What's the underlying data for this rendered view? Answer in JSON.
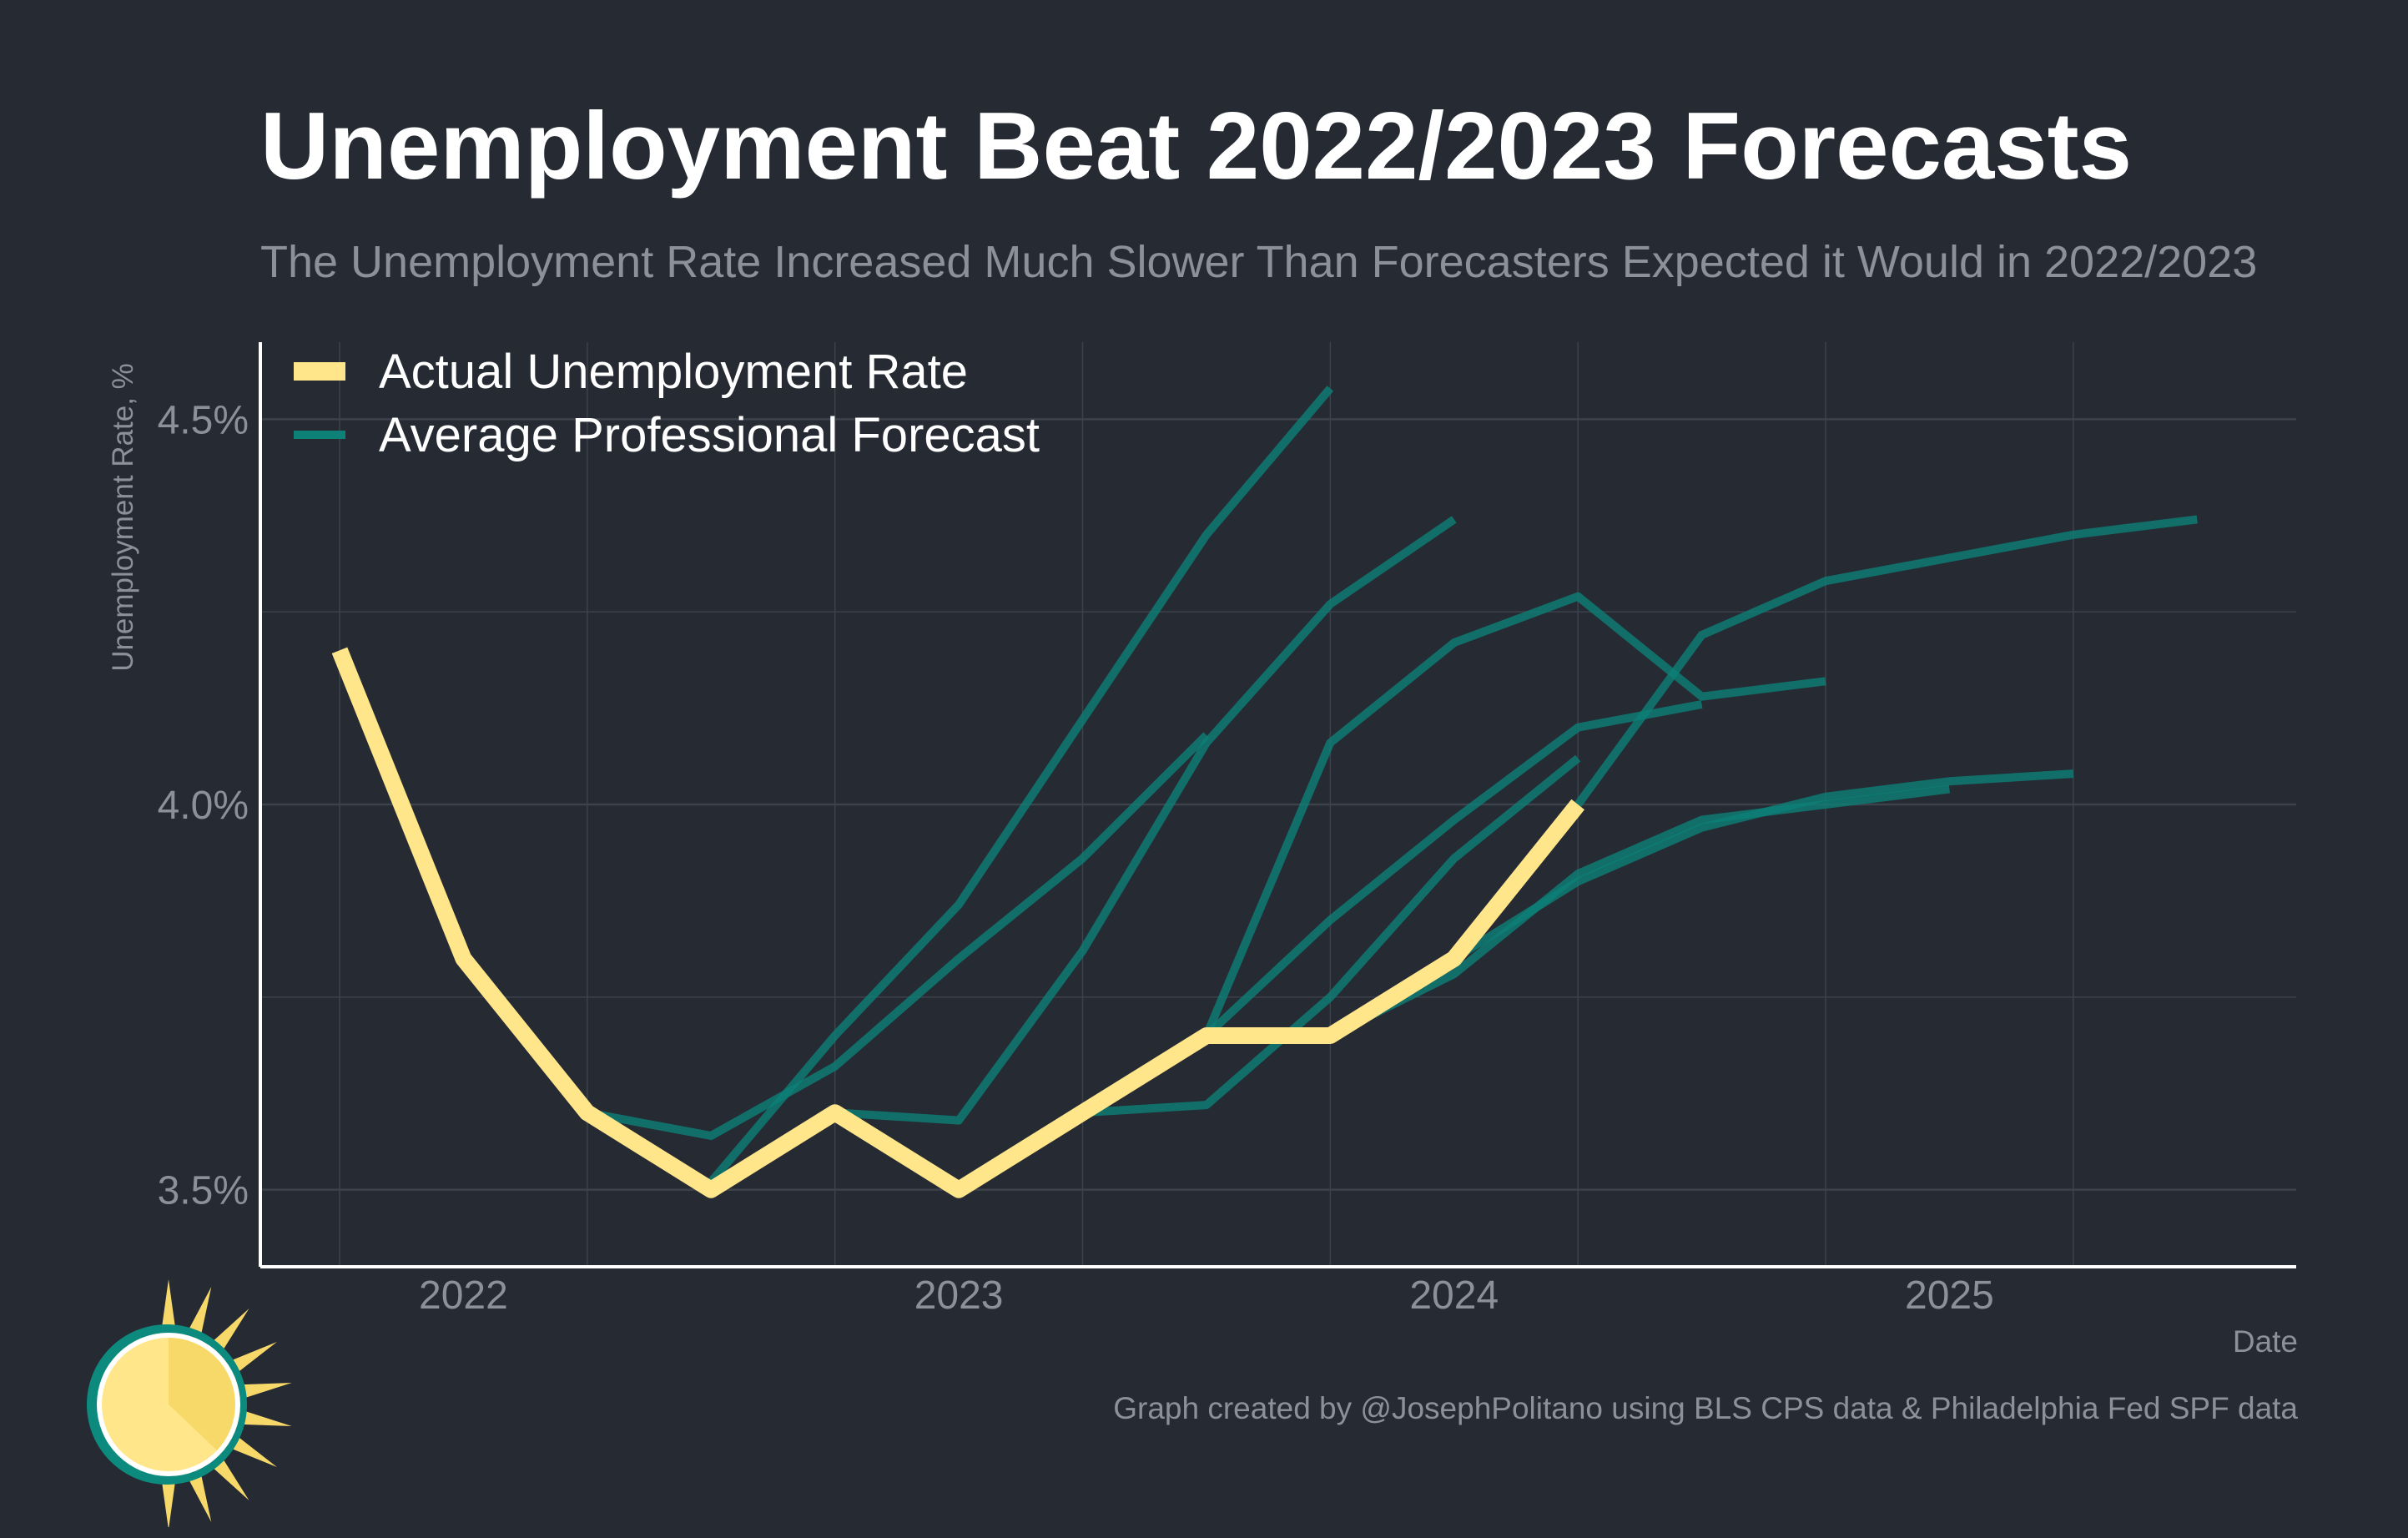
{
  "header": {
    "title": "Unemployment Beat 2022/2023 Forecasts",
    "subtitle": "The Unemployment Rate Increased Much Slower Than Forecasters Expected it Would in 2022/2023"
  },
  "footer": {
    "credit": "Graph created by @JosephPolitano using BLS CPS data & Philadelphia Fed SPF data"
  },
  "colors": {
    "background": "#252a33",
    "actual": "#ffe68a",
    "forecast": "#0d8077",
    "grid": "#3d424b",
    "axis": "#ffffff"
  },
  "chart_data": {
    "type": "line",
    "title": "Unemployment Beat 2022/2023 Forecasts",
    "xlabel": "Date",
    "ylabel": "Unemployment Rate, %",
    "x_tick_labels": [
      "2022",
      "2023",
      "2024",
      "2025"
    ],
    "y_tick_labels": [
      "3.5%",
      "4.0%",
      "4.5%"
    ],
    "y_ticks": [
      3.5,
      4.0,
      4.5
    ],
    "x_ticks": [
      2022.0,
      2023.0,
      2024.0,
      2025.0
    ],
    "xlim": [
      2021.59,
      2025.7
    ],
    "ylim": [
      3.4,
      4.6
    ],
    "grid": true,
    "legend_position": "top-left",
    "legend": [
      {
        "label": "Actual Unemployment Rate",
        "series": "actual"
      },
      {
        "label": "Average Professional Forecast",
        "series": "forecast"
      }
    ],
    "actual": {
      "name": "Actual Unemployment Rate",
      "x": [
        2021.75,
        2022.0,
        2022.25,
        2022.5,
        2022.75,
        2023.0,
        2023.25,
        2023.5,
        2023.75,
        2024.0,
        2024.25
      ],
      "y": [
        4.2,
        3.8,
        3.6,
        3.5,
        3.6,
        3.5,
        3.6,
        3.7,
        3.7,
        3.8,
        4.0
      ]
    },
    "forecasts": [
      {
        "name": "Average Professional Forecast",
        "x": [
          2022.25,
          2022.5,
          2022.75,
          2023.0,
          2023.25,
          2023.5
        ],
        "y": [
          3.6,
          3.57,
          3.66,
          3.8,
          3.93,
          4.09
        ]
      },
      {
        "name": "Average Professional Forecast",
        "x": [
          2022.5,
          2022.75,
          2023.0,
          2023.25,
          2023.5,
          2023.75
        ],
        "y": [
          3.51,
          3.7,
          3.87,
          4.11,
          4.35,
          4.54
        ]
      },
      {
        "name": "Average Professional Forecast",
        "x": [
          2022.75,
          2023.0,
          2023.25,
          2023.5,
          2023.75,
          2024.0
        ],
        "y": [
          3.6,
          3.59,
          3.81,
          4.08,
          4.26,
          4.37
        ]
      },
      {
        "name": "Average Professional Forecast",
        "x": [
          2023.25,
          2023.5,
          2023.75,
          2024.0,
          2024.25
        ],
        "y": [
          3.6,
          3.61,
          3.75,
          3.93,
          4.06
        ]
      },
      {
        "name": "Average Professional Forecast",
        "x": [
          2023.5,
          2023.75,
          2024.0,
          2024.25,
          2024.5
        ],
        "y": [
          3.7,
          3.85,
          3.98,
          4.1,
          4.13
        ]
      },
      {
        "name": "Average Professional Forecast",
        "x": [
          2023.5,
          2023.75,
          2024.0,
          2024.25,
          2024.5,
          2024.75
        ],
        "y": [
          3.7,
          4.08,
          4.21,
          4.27,
          4.14,
          4.16
        ]
      },
      {
        "name": "Average Professional Forecast",
        "x": [
          2023.75,
          2024.0,
          2024.25,
          2024.5,
          2024.75,
          2025.0
        ],
        "y": [
          3.7,
          3.78,
          3.91,
          3.98,
          4.0,
          4.02
        ]
      },
      {
        "name": "Average Professional Forecast",
        "x": [
          2024.0,
          2024.25,
          2024.5,
          2024.75,
          2025.0,
          2025.25
        ],
        "y": [
          3.8,
          3.9,
          3.97,
          4.01,
          4.03,
          4.04
        ]
      },
      {
        "name": "Average Professional Forecast",
        "x": [
          2024.25,
          2024.5,
          2024.75,
          2025.0,
          2025.25,
          2025.5
        ],
        "y": [
          4.0,
          4.22,
          4.29,
          4.32,
          4.35,
          4.37
        ]
      }
    ]
  }
}
